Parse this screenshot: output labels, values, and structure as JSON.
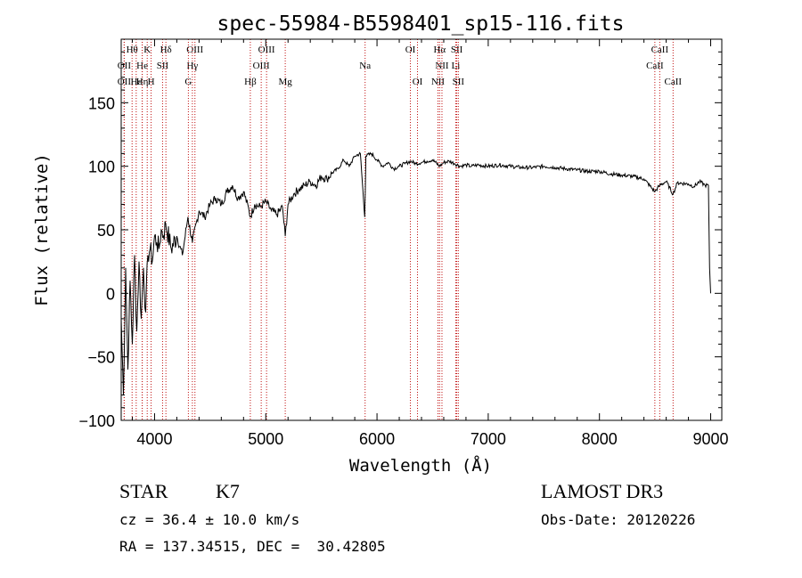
{
  "chart_data": {
    "type": "line",
    "title": "spec-55984-B5598401_sp15-116.fits",
    "xlabel": "Wavelength (Å)",
    "ylabel": "Flux (relative)",
    "xlim": [
      3700,
      9100
    ],
    "ylim": [
      -100,
      200
    ],
    "xticks": [
      4000,
      5000,
      6000,
      7000,
      8000,
      9000
    ],
    "yticks": [
      -100,
      -50,
      0,
      50,
      100,
      150
    ],
    "grid": false,
    "series": [
      {
        "name": "flux",
        "x": [
          3700,
          3720,
          3740,
          3760,
          3780,
          3800,
          3820,
          3840,
          3860,
          3880,
          3900,
          3920,
          3940,
          3960,
          3980,
          4000,
          4020,
          4040,
          4060,
          4080,
          4100,
          4150,
          4200,
          4250,
          4300,
          4340,
          4400,
          4450,
          4500,
          4550,
          4600,
          4650,
          4700,
          4750,
          4800,
          4850,
          4861,
          4900,
          4950,
          5000,
          5050,
          5100,
          5150,
          5175,
          5200,
          5250,
          5300,
          5350,
          5400,
          5450,
          5500,
          5550,
          5600,
          5650,
          5700,
          5750,
          5800,
          5850,
          5890,
          5900,
          5950,
          6000,
          6050,
          6100,
          6150,
          6200,
          6250,
          6300,
          6350,
          6400,
          6450,
          6500,
          6563,
          6600,
          6650,
          6700,
          6750,
          6800,
          6850,
          6900,
          7000,
          7100,
          7200,
          7300,
          7400,
          7500,
          7600,
          7700,
          7800,
          7900,
          8000,
          8100,
          8200,
          8300,
          8400,
          8498,
          8542,
          8600,
          8662,
          8700,
          8800,
          8850,
          8900,
          8950,
          8980,
          8990,
          9000
        ],
        "values": [
          -20,
          -80,
          20,
          -60,
          10,
          -40,
          30,
          -30,
          25,
          -20,
          20,
          -15,
          30,
          35,
          25,
          45,
          40,
          35,
          50,
          45,
          55,
          35,
          45,
          30,
          60,
          40,
          65,
          60,
          70,
          75,
          70,
          80,
          85,
          75,
          80,
          65,
          60,
          70,
          68,
          72,
          65,
          62,
          68,
          45,
          70,
          78,
          82,
          85,
          88,
          85,
          92,
          90,
          95,
          98,
          105,
          100,
          108,
          110,
          60,
          108,
          110,
          105,
          100,
          103,
          98,
          100,
          102,
          104,
          102,
          103,
          104,
          105,
          100,
          103,
          104,
          102,
          100,
          101,
          100,
          101,
          100,
          101,
          100,
          99,
          99,
          100,
          99,
          98,
          97,
          96,
          96,
          94,
          93,
          92,
          90,
          80,
          85,
          88,
          78,
          87,
          86,
          84,
          88,
          85,
          85,
          20,
          0
        ]
      }
    ],
    "lines": [
      {
        "name": "Hθ",
        "wavelength": 3798,
        "row": 0
      },
      {
        "name": "K",
        "wavelength": 3934,
        "row": 0
      },
      {
        "name": "Hδ",
        "wavelength": 4102,
        "row": 0
      },
      {
        "name": "OIII",
        "wavelength": 4363,
        "row": 0
      },
      {
        "name": "OIII",
        "wavelength": 5007,
        "row": 0
      },
      {
        "name": "OI",
        "wavelength": 6300,
        "row": 0
      },
      {
        "name": "Hα",
        "wavelength": 6563,
        "row": 0
      },
      {
        "name": "SII",
        "wavelength": 6717,
        "row": 0
      },
      {
        "name": "CaII",
        "wavelength": 8542,
        "row": 0
      },
      {
        "name": "OII",
        "wavelength": 3727,
        "row": 1
      },
      {
        "name": "He",
        "wavelength": 3889,
        "row": 1
      },
      {
        "name": "SII",
        "wavelength": 4072,
        "row": 1
      },
      {
        "name": "Hγ",
        "wavelength": 4340,
        "row": 1
      },
      {
        "name": "OIII",
        "wavelength": 4959,
        "row": 1
      },
      {
        "name": "Na",
        "wavelength": 5893,
        "row": 1
      },
      {
        "name": "NII",
        "wavelength": 6584,
        "row": 1
      },
      {
        "name": "Li",
        "wavelength": 6708,
        "row": 1
      },
      {
        "name": "CaII",
        "wavelength": 8498,
        "row": 1
      },
      {
        "name": "OII",
        "wavelength": 3727,
        "row": 2
      },
      {
        "name": "Hε",
        "wavelength": 3835,
        "row": 2
      },
      {
        "name": "Hη",
        "wavelength": 3889,
        "row": 2
      },
      {
        "name": "H",
        "wavelength": 3969,
        "row": 2
      },
      {
        "name": "G",
        "wavelength": 4304,
        "row": 2
      },
      {
        "name": "Hβ",
        "wavelength": 4861,
        "row": 2
      },
      {
        "name": "Mg",
        "wavelength": 5175,
        "row": 2
      },
      {
        "name": "OI",
        "wavelength": 6364,
        "row": 2
      },
      {
        "name": "NII",
        "wavelength": 6548,
        "row": 2
      },
      {
        "name": "SII",
        "wavelength": 6731,
        "row": 2
      },
      {
        "name": "CaII",
        "wavelength": 8662,
        "row": 2
      }
    ]
  },
  "info": {
    "object_class": "STAR",
    "subclass": "K7",
    "survey": "LAMOST DR3",
    "cz": "cz = 36.4 ± 10.0 km/s",
    "obs_date": "Obs-Date: 20120226",
    "coords": "RA = 137.34515, DEC =  30.42805"
  }
}
